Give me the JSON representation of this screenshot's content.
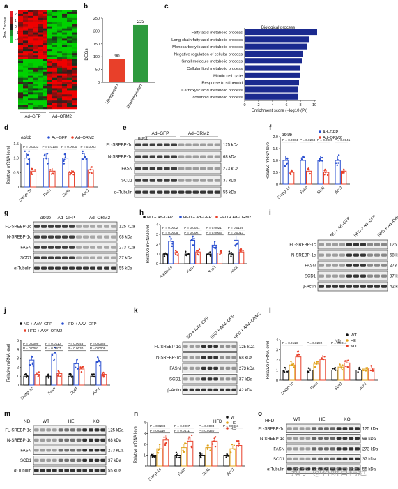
{
  "panel_letters": [
    "a",
    "b",
    "c",
    "d",
    "e",
    "f",
    "g",
    "h",
    "i",
    "j",
    "k",
    "l",
    "m",
    "n",
    "o"
  ],
  "watermark": "知乎 @科研日精进",
  "a": {
    "colorbar_title": "Row Z score",
    "colorbar_ticks": [
      "2",
      "1",
      "0",
      "−1",
      "−2"
    ],
    "groups": [
      "Ad–GFP",
      "Ad–ORM2"
    ]
  },
  "b": {
    "chart_data": {
      "type": "bar",
      "categories": [
        "Upregulated",
        "Downregulated"
      ],
      "values": [
        90,
        223
      ],
      "ylabel": "DEGs",
      "colors": [
        "#e8402a",
        "#2e9a3e"
      ]
    }
  },
  "c": {
    "chart_data": {
      "type": "bar",
      "orientation": "horizontal",
      "title": "Biological process",
      "categories": [
        "Fatty acid metabolic process",
        "Long-chain fatty acid metabolic process",
        "Monocarboxylic acid metabolic process",
        "Negative regulation of cellular process",
        "Small molecule metabolic process",
        "Cellular lipid metabolic process",
        "Mitotic cell cycle",
        "Response to stilbenoid",
        "Carboxylic acid metabolic process",
        "Icosanoid metabolic process"
      ],
      "values": [
        10.4,
        9.3,
        8.9,
        8.4,
        8.2,
        8.0,
        7.9,
        7.8,
        7.7,
        7.6
      ],
      "xlabel": "Enrichment score (−log10 (P))",
      "xticks": [
        "0",
        "2",
        "4",
        "6",
        "8",
        "10"
      ],
      "xlim": [
        0,
        10
      ],
      "bar_color": "#1b2a8f"
    }
  },
  "d": {
    "strain": "ob/ob",
    "legend": [
      "Ad–GFP",
      "Ad–ORM2"
    ],
    "ylabel": "Relative mRNA level",
    "yticks": [
      "0",
      "0.5",
      "1.0",
      "1.5"
    ],
    "pvalues": [
      "P = 0.0033",
      "P = 0.0104",
      "P = 0.0000",
      "P = 0.0002"
    ],
    "chart_data": {
      "type": "bar",
      "categories": [
        "Srebp-1c",
        "Fasn",
        "Scd1",
        "Acc1"
      ],
      "ylim": [
        0,
        1.5
      ],
      "series": [
        {
          "name": "Ad–GFP",
          "values": [
            1.0,
            1.0,
            1.0,
            1.0
          ],
          "color": "#2a4fd0"
        },
        {
          "name": "Ad–ORM2",
          "values": [
            0.55,
            0.55,
            0.5,
            0.6
          ],
          "color": "#e8402a"
        }
      ]
    }
  },
  "e": {
    "strain": "ob/ob",
    "groups": [
      "Ad–GFP",
      "Ad–ORM2"
    ],
    "rows": [
      "FL-SREBP-1c",
      "N-SREBP-1c",
      "FASN",
      "SCD1",
      "α–Tubulin"
    ],
    "sizes": [
      "125 kDa",
      "68 kDa",
      "273 kDa",
      "37 kDa",
      "55 kDa"
    ]
  },
  "f": {
    "strain": "db/db",
    "legend": [
      "Ad–GFP",
      "Ad–ORM2"
    ],
    "ylabel": "Relative mRNA level",
    "yticks": [
      "0",
      "0.5",
      "1.0",
      "1.5",
      "2.0"
    ],
    "pvalues": [
      "P = 0.0004",
      "P = 0.0268",
      "P = 0.0009",
      "P = 0.0041"
    ],
    "chart_data": {
      "type": "bar",
      "categories": [
        "Srebp-1c",
        "Fasn",
        "Scd1",
        "Acc1"
      ],
      "ylim": [
        0,
        2.0
      ],
      "series": [
        {
          "name": "Ad–GFP",
          "values": [
            1.0,
            1.0,
            1.0,
            1.0
          ],
          "color": "#2a4fd0"
        },
        {
          "name": "Ad–ORM2",
          "values": [
            0.5,
            0.55,
            0.5,
            0.55
          ],
          "color": "#e8402a"
        }
      ]
    }
  },
  "g": {
    "strain": "db/db",
    "groups": [
      "Ad–GFP",
      "Ad–ORM2"
    ],
    "rows": [
      "FL-SREBP-1c",
      "N-SREBP-1c",
      "FASN",
      "SCD1",
      "α-Tubulin"
    ],
    "sizes": [
      "125 kDa",
      "68 kDa",
      "273 kDa",
      "37 kDa",
      "55 kDa"
    ]
  },
  "h": {
    "legend": [
      "ND + Ad–GFP",
      "HFD + Ad–GFP",
      "HFD + Ad–ORM2"
    ],
    "ylabel": "Relative mRNA level",
    "yticks": [
      "0",
      "1",
      "2",
      "3",
      "4"
    ],
    "pvalues": [
      "P = 0.0002",
      "P = 0.0005",
      "P = 0.0041",
      "P = 0.0007",
      "P = 0.0021",
      "P = 0.0006",
      "P = 0.0159",
      "P = 0.0013"
    ],
    "chart_data": {
      "type": "bar",
      "categories": [
        "Srebp-1c",
        "Fasn",
        "Scd1",
        "Acc1"
      ],
      "ylim": [
        0,
        4
      ],
      "series": [
        {
          "name": "ND + Ad–GFP",
          "values": [
            1.0,
            1.0,
            1.0,
            1.0
          ],
          "color": "#111111"
        },
        {
          "name": "HFD + Ad–GFP",
          "values": [
            2.3,
            2.4,
            1.9,
            2.4
          ],
          "color": "#2a4fd0"
        },
        {
          "name": "HFD + Ad–ORM2",
          "values": [
            1.1,
            1.2,
            1.1,
            1.2
          ],
          "color": "#e8402a"
        }
      ]
    }
  },
  "i": {
    "groups": [
      "ND + Ad–GFP",
      "HFD + Ad–GFP",
      "HFD + Ad–ORM2"
    ],
    "rows": [
      "FL-SREBP-1c",
      "N-SREBP-1c",
      "FASN",
      "SCD1",
      "β-Actin"
    ],
    "sizes": [
      "125 kDa",
      "68 kDa",
      "273 kDa",
      "37 kDa",
      "42 kDa"
    ]
  },
  "j": {
    "legend": [
      "ND + AAV–GFP",
      "HFD + AAV–GFP",
      "HFD + AAV–ORM2"
    ],
    "ylabel": "Relative mRNA level",
    "yticks": [
      "0",
      "1",
      "2",
      "3",
      "4",
      "5"
    ],
    "pvalues": [
      "P = 0.0009",
      "P = 0.0002",
      "P = 0.0110",
      "P = 0.0007",
      "P = 0.0043",
      "P = 0.0030",
      "P = 0.0085",
      "P = 0.0009"
    ],
    "chart_data": {
      "type": "bar",
      "categories": [
        "Srebp-1c",
        "Fasn",
        "Scd1",
        "Acc1"
      ],
      "ylim": [
        0,
        5
      ],
      "series": [
        {
          "name": "ND + AAV–GFP",
          "values": [
            1.0,
            1.0,
            1.0,
            1.0
          ],
          "color": "#111111"
        },
        {
          "name": "HFD + AAV–GFP",
          "values": [
            2.8,
            3.5,
            2.4,
            2.6
          ],
          "color": "#2a4fd0"
        },
        {
          "name": "HFD + AAV–ORM2",
          "values": [
            1.2,
            1.3,
            1.8,
            1.2
          ],
          "color": "#e8402a"
        }
      ]
    }
  },
  "k": {
    "groups": [
      "ND + AAV–GFP",
      "HFD + AAV–GFP",
      "HFD + AAV–ORM2"
    ],
    "rows": [
      "FL-SREBP-1c",
      "N-SREBP-1c",
      "FASN",
      "SCD1",
      "β-Actin"
    ],
    "sizes": [
      "125 kDa",
      "68 kDa",
      "273 kDa",
      "37 kDa",
      "42 kDa"
    ]
  },
  "l": {
    "diet": "ND",
    "legend": [
      "WT",
      "HE",
      "KO"
    ],
    "ylabel": "Relative mRNA level",
    "yticks": [
      "0",
      "1",
      "2",
      "3",
      "4"
    ],
    "pvalues": [
      "P = 0.0113",
      "P = 0.0292",
      "P = 0.0014"
    ],
    "chart_data": {
      "type": "bar",
      "categories": [
        "Srebp-1c",
        "Fasn",
        "Scd1",
        "Acc1"
      ],
      "ylim": [
        0,
        4
      ],
      "series": [
        {
          "name": "WT",
          "values": [
            1.0,
            1.0,
            1.0,
            1.0
          ],
          "color": "#111111"
        },
        {
          "name": "HE",
          "values": [
            1.5,
            1.6,
            1.3,
            1.1
          ],
          "color": "#e0a21c"
        },
        {
          "name": "KO",
          "values": [
            2.3,
            2.1,
            1.7,
            1.2
          ],
          "color": "#e8402a"
        }
      ]
    }
  },
  "m": {
    "diet": "ND",
    "groups": [
      "WT",
      "HE",
      "KO"
    ],
    "rows": [
      "FL-SREBP-1c",
      "N-SREBP-1c",
      "FASN",
      "SCD1",
      "α-Tubulin"
    ],
    "sizes": [
      "125 kDa",
      "68 kDa",
      "273 kDa",
      "37 kDa",
      "55 kDa"
    ]
  },
  "n": {
    "diet": "HFD",
    "legend": [
      "WT",
      "HE",
      "KO"
    ],
    "ylabel": "Relative mRNA level",
    "yticks": [
      "0",
      "1",
      "2",
      "3",
      "4"
    ],
    "pvalues": [
      "P = 0.0288",
      "P = 0.0110",
      "P = 0.0007",
      "P = 0.0411",
      "P = 0.0003",
      "P = 0.0330",
      "P = 0.0061"
    ],
    "chart_data": {
      "type": "bar",
      "categories": [
        "Srebp-1c",
        "Fasn",
        "Scd1",
        "Acc1"
      ],
      "ylim": [
        0,
        4
      ],
      "series": [
        {
          "name": "WT",
          "values": [
            1.0,
            1.0,
            1.0,
            1.0
          ],
          "color": "#111111"
        },
        {
          "name": "HE",
          "values": [
            1.6,
            1.7,
            1.7,
            1.6
          ],
          "color": "#e0a21c"
        },
        {
          "name": "KO",
          "values": [
            2.4,
            2.3,
            2.3,
            1.9
          ],
          "color": "#e8402a"
        }
      ]
    }
  },
  "o": {
    "diet": "HFD",
    "groups": [
      "WT",
      "HE",
      "KO"
    ],
    "rows": [
      "FL-SREBP-1c",
      "N-SREBP-1c",
      "FASN",
      "SCD1",
      "α-Tubulin"
    ],
    "sizes": [
      "125 kDa",
      "68 kDa",
      "273 kDa",
      "37 kDa",
      "55 kDa"
    ]
  }
}
